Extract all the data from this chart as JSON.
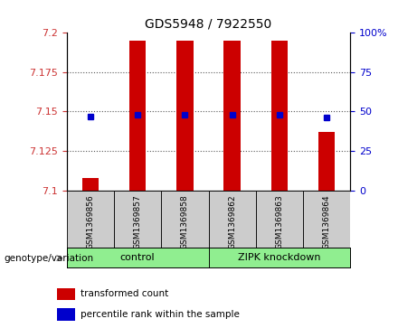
{
  "title": "GDS5948 / 7922550",
  "samples": [
    "GSM1369856",
    "GSM1369857",
    "GSM1369858",
    "GSM1369862",
    "GSM1369863",
    "GSM1369864"
  ],
  "transformed_counts": [
    7.108,
    7.195,
    7.195,
    7.195,
    7.195,
    7.137
  ],
  "percentile_values": [
    7.147,
    7.148,
    7.148,
    7.148,
    7.148,
    7.146
  ],
  "left_ylim": [
    7.1,
    7.2
  ],
  "left_yticks": [
    7.1,
    7.125,
    7.15,
    7.175,
    7.2
  ],
  "left_yticklabels": [
    "7.1",
    "7.125",
    "7.15",
    "7.175",
    "7.2"
  ],
  "right_ylim": [
    0,
    100
  ],
  "right_yticks": [
    0,
    25,
    50,
    75,
    100
  ],
  "right_yticklabels": [
    "0",
    "25",
    "50",
    "75",
    "100%"
  ],
  "bar_color": "#cc0000",
  "dot_color": "#0000cc",
  "bar_bottom": 7.1,
  "bar_width": 0.35,
  "left_tick_color": "#cc3333",
  "right_tick_color": "#0000cc",
  "grid_yticks": [
    7.125,
    7.15,
    7.175
  ],
  "grid_color": "#555555",
  "sample_box_color": "#cccccc",
  "group_color": "#90ee90",
  "control_label": "control",
  "knockdown_label": "ZIPK knockdown",
  "genotype_label": "genotype/variation",
  "legend_items": [
    {
      "color": "#cc0000",
      "label": "transformed count"
    },
    {
      "color": "#0000cc",
      "label": "percentile rank within the sample"
    }
  ],
  "title_fontsize": 10,
  "tick_fontsize": 8,
  "sample_fontsize": 6.5,
  "group_fontsize": 8,
  "legend_fontsize": 7.5,
  "genotype_fontsize": 7.5
}
